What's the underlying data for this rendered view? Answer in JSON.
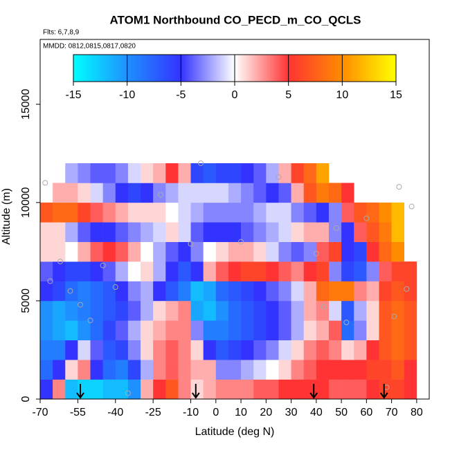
{
  "chart_data": {
    "type": "heatmap",
    "title": "ATOM1 Northbound CO_PECD_m_CO_QCLS",
    "subtitle": "Flts: 6,7,8,9",
    "annotation": "MMDD: 0812,0815,0817,0820",
    "x_label": "Latitude (deg N)",
    "y_label": "Altitude (m)",
    "xlim": [
      -70,
      85
    ],
    "ylim": [
      0,
      18300
    ],
    "xticks": [
      -70,
      -55,
      -40,
      -25,
      -10,
      0,
      10,
      20,
      30,
      40,
      50,
      60,
      70,
      80
    ],
    "yticks": [
      0,
      5000,
      10000,
      15000
    ],
    "zlim": [
      -15,
      15
    ],
    "zticks": [
      -15,
      -10,
      -5,
      0,
      5,
      10,
      15
    ],
    "colorscale": [
      "#00ffff",
      "#1e90ff",
      "#3333ff",
      "#ffffff",
      "#ff3333",
      "#ff8c00",
      "#ffff00"
    ],
    "x_bins": [
      -70,
      -65,
      -60,
      -55,
      -50,
      -45,
      -40,
      -35,
      -30,
      -25,
      -20,
      -15,
      -10,
      -5,
      0,
      5,
      10,
      15,
      20,
      25,
      30,
      35,
      40,
      45,
      50,
      55,
      60,
      65,
      70,
      75,
      80
    ],
    "y_bins": [
      0,
      1000,
      2000,
      3000,
      4000,
      5000,
      6000,
      7000,
      8000,
      9000,
      10000,
      11000,
      12000
    ],
    "z": [
      [
        -5,
        3,
        -12,
        -13,
        -13,
        -12,
        -12,
        -10,
        2,
        5,
        7,
        3,
        1,
        2,
        3,
        3,
        3,
        4,
        4,
        5,
        5,
        5,
        5,
        4,
        4,
        4,
        5,
        6,
        6,
        5
      ],
      [
        -8,
        -5,
        1,
        3,
        -5,
        -8,
        -9,
        -6,
        -2,
        3,
        4,
        3,
        2,
        2,
        -3,
        -3,
        -2,
        -1,
        0,
        1,
        3,
        4,
        5,
        5,
        5,
        5,
        6,
        6,
        7,
        5
      ],
      [
        -9,
        -9,
        -5,
        -1,
        -4,
        -7,
        -6,
        -3,
        1,
        3,
        4,
        3,
        1,
        -5,
        -7,
        -6,
        -5,
        -4,
        -3,
        -1,
        1,
        3,
        4,
        3,
        1,
        2,
        5,
        7,
        8,
        7
      ],
      [
        -10,
        -11,
        -12,
        -10,
        -8,
        -6,
        -4,
        -2,
        1,
        2,
        3,
        3,
        -3,
        -9,
        -9,
        -8,
        -7,
        -6,
        -5,
        -4,
        -2,
        1,
        2,
        4,
        -8,
        -3,
        1,
        7,
        8,
        7
      ],
      [
        -10,
        -11,
        -10,
        -9,
        -8,
        -7,
        -6,
        -4,
        -2,
        1,
        2,
        3,
        -11,
        -12,
        -10,
        -8,
        -7,
        -6,
        -5,
        -4,
        -2,
        2,
        3,
        -1,
        -7,
        -2,
        1,
        7,
        8,
        7
      ],
      [
        -5,
        -6,
        -8,
        -9,
        -8,
        -7,
        -5,
        -3,
        -2,
        -5,
        -7,
        -9,
        -12,
        -11,
        -8,
        -7,
        -6,
        -5,
        -4,
        -3,
        -1,
        2,
        8,
        9,
        9,
        3,
        2,
        6,
        7,
        6
      ],
      [
        -4,
        -5,
        -6,
        -6,
        -5,
        -4,
        -2,
        0,
        1,
        -2,
        -5,
        -7,
        -5,
        2,
        4,
        5,
        6,
        6,
        5,
        4,
        3,
        5,
        6,
        -3,
        -6,
        -7,
        -3,
        4,
        6,
        6
      ],
      [
        1,
        1,
        0,
        2,
        4,
        5,
        4,
        2,
        0,
        -2,
        -4,
        -5,
        -3,
        0,
        1,
        2,
        2,
        1,
        -1,
        -3,
        -4,
        -3,
        4,
        6,
        -5,
        -6,
        5,
        8,
        10,
        null
      ],
      [
        1,
        1,
        -2,
        -4,
        -5,
        -5,
        -4,
        -3,
        -2,
        -1,
        1,
        -1,
        -4,
        -5,
        -5,
        -5,
        -4,
        -3,
        -2,
        -1,
        1,
        2,
        2,
        -3,
        -5,
        4,
        7,
        9,
        12,
        null
      ],
      [
        7,
        8,
        8,
        6,
        4,
        3,
        2,
        1,
        1,
        1,
        0,
        -1,
        -2,
        -3,
        -3,
        -3,
        -3,
        -2,
        -1,
        -1,
        -3,
        -4,
        -5,
        -3,
        4,
        7,
        8,
        10,
        12,
        null
      ],
      [
        null,
        2,
        2,
        1,
        -1,
        -3,
        -5,
        -6,
        -5,
        -3,
        -2,
        -1,
        -1,
        -1,
        -1,
        -2,
        -3,
        -4,
        -5,
        -4,
        2,
        7,
        9,
        8,
        5,
        null,
        null,
        null,
        null,
        null
      ],
      [
        null,
        null,
        -2,
        -3,
        -4,
        -4,
        -3,
        -1,
        1,
        2,
        5,
        2,
        -6,
        -7,
        -6,
        -6,
        -5,
        -4,
        -2,
        2,
        6,
        8,
        11,
        null,
        null,
        null,
        null,
        null,
        null,
        null
      ]
    ],
    "samples": {
      "x": [
        -68,
        -66,
        -62,
        -58,
        -54,
        -50,
        -45,
        -40,
        -35,
        -22,
        -10,
        -6,
        10,
        25,
        40,
        43,
        48,
        52,
        60,
        68,
        71,
        73,
        76,
        78
      ],
      "y": [
        11000,
        6000,
        7000,
        5500,
        4800,
        4000,
        6800,
        5700,
        300,
        10400,
        7900,
        12000,
        8000,
        11300,
        7400,
        4700,
        8700,
        3900,
        9200,
        600,
        4200,
        10800,
        5600,
        9800
      ]
    },
    "flight_markers": [
      -54,
      -8,
      39,
      67
    ]
  }
}
